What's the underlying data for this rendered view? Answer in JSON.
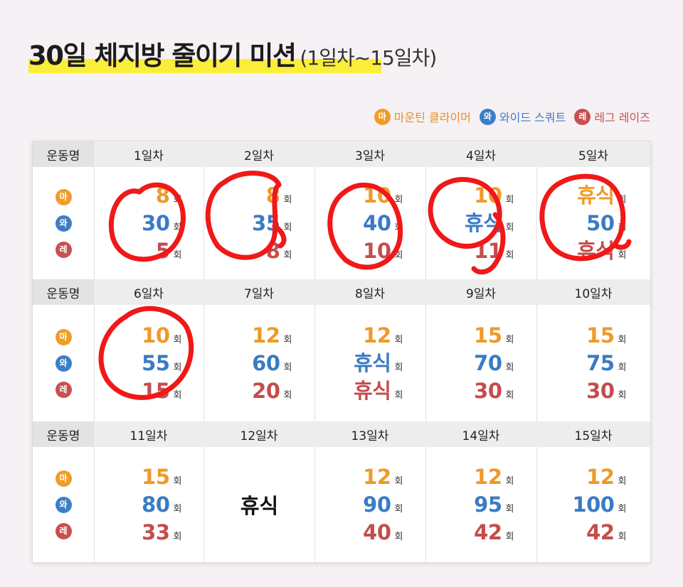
{
  "title": "30일 체지방 줄이기 미션",
  "subtitle": "(1일차~15일차)",
  "legend": [
    {
      "badge": "마",
      "label": "마운틴 클라이머",
      "key": "ma"
    },
    {
      "badge": "와",
      "label": "와이드 스쿼트",
      "key": "wa"
    },
    {
      "badge": "레",
      "label": "레그 레이즈",
      "key": "re"
    }
  ],
  "row_label": "운동명",
  "unit": "회",
  "rest": "휴식",
  "colors": {
    "mountain": "#ee9a28",
    "wide": "#3a7bc4",
    "leg": "#c44d4c",
    "highlight": "#fbee3a",
    "pen": "#f01818"
  },
  "weeks": [
    {
      "days": [
        {
          "label": "1일차",
          "ma": "8",
          "wa": "30",
          "re": "5"
        },
        {
          "label": "2일차",
          "ma": "8",
          "wa": "35",
          "re": "8"
        },
        {
          "label": "3일차",
          "ma": "10",
          "wa": "40",
          "re": "10"
        },
        {
          "label": "4일차",
          "ma": "10",
          "wa": "휴식",
          "re": "11"
        },
        {
          "label": "5일차",
          "ma": "휴식",
          "wa": "50",
          "re": "휴식"
        }
      ]
    },
    {
      "days": [
        {
          "label": "6일차",
          "ma": "10",
          "wa": "55",
          "re": "15"
        },
        {
          "label": "7일차",
          "ma": "12",
          "wa": "60",
          "re": "20"
        },
        {
          "label": "8일차",
          "ma": "12",
          "wa": "휴식",
          "re": "휴식"
        },
        {
          "label": "9일차",
          "ma": "15",
          "wa": "70",
          "re": "30"
        },
        {
          "label": "10일차",
          "ma": "15",
          "wa": "75",
          "re": "30"
        }
      ]
    },
    {
      "days": [
        {
          "label": "11일차",
          "ma": "15",
          "wa": "80",
          "re": "33"
        },
        {
          "label": "12일차",
          "rest_only": "휴식"
        },
        {
          "label": "13일차",
          "ma": "12",
          "wa": "90",
          "re": "40"
        },
        {
          "label": "14일차",
          "ma": "12",
          "wa": "95",
          "re": "42"
        },
        {
          "label": "15일차",
          "ma": "12",
          "wa": "100",
          "re": "42"
        }
      ]
    }
  ]
}
